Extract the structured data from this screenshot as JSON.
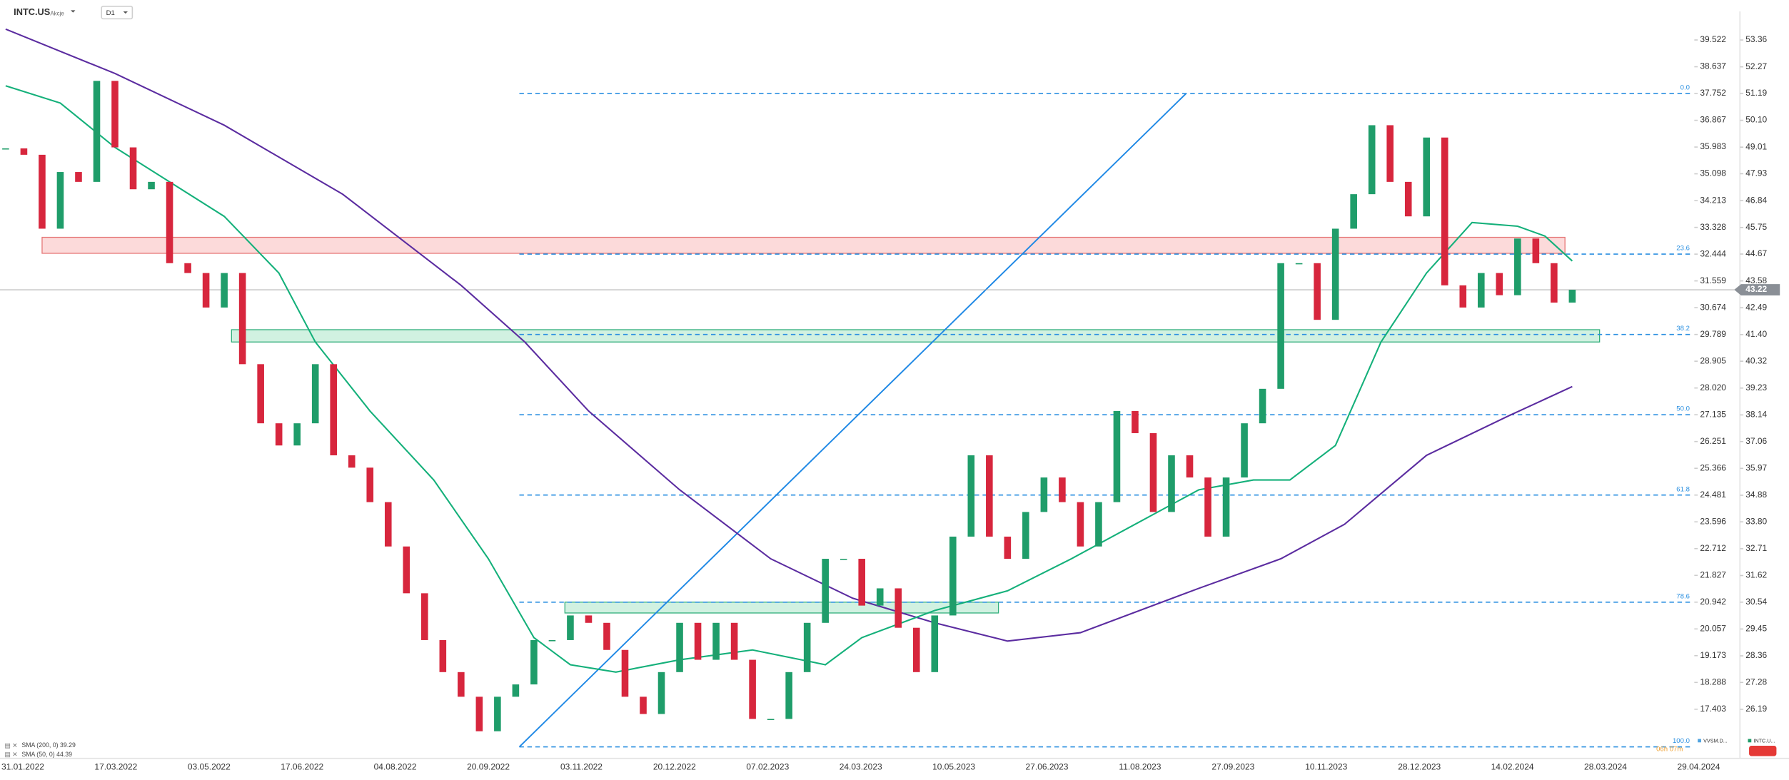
{
  "header": {
    "symbol": "INTC.US",
    "market": "Akcje",
    "interval": "D1"
  },
  "chart_data": {
    "type": "candlestick",
    "series": [
      {
        "name": "INTC.US",
        "color_up": "#1f9d6a",
        "color_down": "#d7263d",
        "values": [
          48.96,
          48.7,
          45.7,
          48.0,
          47.6,
          51.7,
          49.0,
          47.3,
          47.6,
          44.3,
          43.9,
          42.5,
          43.9,
          40.2,
          37.8,
          36.9,
          37.8,
          40.2,
          36.5,
          36.0,
          34.6,
          32.8,
          30.9,
          29.0,
          27.7,
          26.7,
          25.3,
          26.7,
          27.2,
          29.0,
          29.0,
          30.0,
          29.7,
          28.6,
          26.7,
          26.0,
          27.7,
          29.7,
          28.2,
          29.7,
          28.2,
          25.8,
          25.8,
          27.7,
          29.7,
          32.3,
          32.3,
          30.4,
          31.1,
          29.5,
          27.7,
          30.0,
          33.2,
          36.5,
          33.2,
          32.3,
          34.2,
          35.6,
          34.6,
          32.8,
          34.6,
          38.3,
          37.4,
          34.2,
          36.5,
          35.6,
          33.2,
          35.6,
          37.8,
          39.2,
          44.3,
          44.3,
          42.0,
          45.7,
          47.1,
          49.9,
          47.6,
          46.2,
          49.4,
          43.4,
          42.5,
          43.9,
          43.0,
          45.3,
          44.3,
          42.7,
          43.22
        ]
      },
      {
        "name": "SMA (200, 0)",
        "color": "#5b2ca0",
        "legend_value": 39.29,
        "x": [
          0,
          6,
          12,
          18.5,
          25,
          28.5,
          32,
          37,
          42,
          46.5,
          51,
          55,
          59,
          65.5,
          70,
          73.5,
          78,
          82.5,
          86
        ],
        "values": [
          53.8,
          52.0,
          49.9,
          47.1,
          43.4,
          41.1,
          38.3,
          35.1,
          32.3,
          30.7,
          29.7,
          28.96,
          29.3,
          31.1,
          32.3,
          33.7,
          36.5,
          38.1,
          39.29
        ]
      },
      {
        "name": "SMA (50, 0)",
        "color": "#14b07a",
        "legend_value": 44.39,
        "x": [
          0,
          3,
          6,
          9,
          12,
          15,
          17,
          20,
          23.5,
          26.5,
          29,
          31,
          33.5,
          37,
          41,
          45,
          47,
          51,
          55,
          58.5,
          62,
          65.5,
          68.5,
          70.5,
          73,
          75.5,
          78,
          80.5,
          83,
          84.5,
          86
        ],
        "values": [
          51.5,
          50.8,
          49.0,
          47.6,
          46.2,
          43.9,
          41.1,
          38.3,
          35.5,
          32.3,
          29.1,
          28.0,
          27.7,
          28.2,
          28.6,
          28.0,
          29.1,
          30.2,
          31.0,
          32.3,
          33.7,
          35.1,
          35.5,
          35.5,
          36.9,
          41.1,
          43.9,
          45.95,
          45.8,
          45.4,
          44.39
        ]
      }
    ],
    "xlim": [
      -0.31,
      92.7
    ],
    "x_labels": [
      "31.01.2022",
      "17.03.2022",
      "03.05.2022",
      "17.06.2022",
      "04.08.2022",
      "20.09.2022",
      "03.11.2022",
      "20.12.2022",
      "07.02.2023",
      "24.03.2023",
      "10.05.2023",
      "27.06.2023",
      "11.08.2023",
      "27.09.2023",
      "10.11.2023",
      "28.12.2023",
      "14.02.2024",
      "28.03.2024",
      "29.04.2024"
    ],
    "ylim": [
      24.2,
      54.52
    ],
    "yticks": [
      53.36,
      52.27,
      51.19,
      {
        "value": 50.1,
        "label": "50.10"
      },
      49.01,
      47.93,
      46.84,
      45.75,
      44.67,
      43.58,
      42.49,
      {
        "value": 41.4,
        "label": "41.40"
      },
      40.32,
      39.23,
      38.14,
      37.06,
      35.97,
      34.88,
      {
        "value": 33.8,
        "label": "33.80"
      },
      32.71,
      31.62,
      30.54,
      29.45,
      28.36,
      27.28,
      26.19
    ],
    "y2lim": [
      15.78,
      40.466
    ],
    "y2ticks": [
      39.522,
      38.637,
      37.752,
      36.867,
      35.983,
      35.098,
      34.213,
      33.328,
      32.444,
      31.559,
      30.674,
      29.789,
      28.905,
      {
        "value": 28.02,
        "label": "28.020"
      },
      27.135,
      26.251,
      25.366,
      24.481,
      23.596,
      22.712,
      21.827,
      20.942,
      20.057,
      19.173,
      18.288,
      17.403
    ],
    "fib_levels": {
      "color": "#2a8fe0",
      "axis": "y2",
      "start": 28.2,
      "levels": [
        {
          "label": "0.0",
          "value": 37.752
        },
        {
          "label": "23.6",
          "value": 32.444
        },
        {
          "label": "38.2",
          "value": 29.789
        },
        {
          "label": "50.0",
          "value": 27.135
        },
        {
          "label": "61.8",
          "value": 24.481
        },
        {
          "label": "78.6",
          "value": 20.942
        },
        {
          "label": "100.0",
          "value": 16.16
        }
      ]
    },
    "zones": [
      {
        "stroke": "#e57373",
        "fill": "#fbd3d3",
        "start": 2,
        "end": 85.6,
        "top": 45.35,
        "bottom": 44.7
      },
      {
        "stroke": "#2fae7a",
        "fill": "#c9efdc",
        "start": 12.4,
        "end": 87.5,
        "top": 41.6,
        "bottom": 41.1
      },
      {
        "stroke": "#2fae7a",
        "fill": "#c9efdc",
        "start": 30.7,
        "end": 54.5,
        "top": 30.54,
        "bottom": 30.1
      }
    ],
    "trend_line": {
      "color": "#1e88e5",
      "axis": "y2",
      "x": [
        28.2,
        64.8
      ],
      "values": [
        16.16,
        37.752
      ]
    },
    "price_line_color": "#9e9e9e",
    "side_legend": [
      {
        "name": "INTC.U...",
        "color": "#1f9d6a"
      },
      {
        "name": "VVSM.D...",
        "color": "#4fa3e0"
      }
    ],
    "countdown": "06h 07m"
  }
}
